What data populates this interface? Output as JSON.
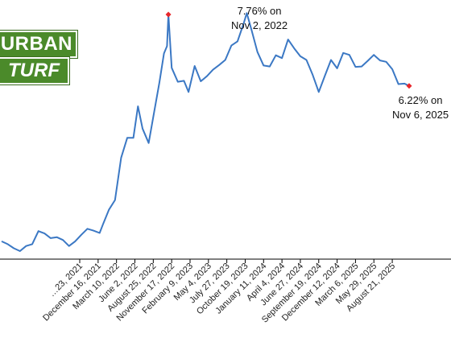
{
  "logo": {
    "line1": "URBAN",
    "line2": "TURF"
  },
  "annotations": {
    "peak": {
      "line1": "7.76% on",
      "line2": "Nov 2, 2022"
    },
    "last": {
      "line1": "6.22% on",
      "line2": "Nov 6, 2025"
    }
  },
  "colors": {
    "line": "#3b78c4",
    "marker": "#e8262b",
    "logo": "#4b8a2a"
  },
  "chart_data": {
    "type": "line",
    "title": "",
    "xlabel": "",
    "ylabel": "",
    "ylim": [
      2.5,
      8.0
    ],
    "grid": false,
    "series": [
      {
        "name": "",
        "points": [
          [
            "2020-10-01",
            2.87
          ],
          [
            "2020-10-29",
            2.81
          ],
          [
            "2020-11-26",
            2.72
          ],
          [
            "2020-12-24",
            2.66
          ],
          [
            "2021-01-21",
            2.77
          ],
          [
            "2021-02-18",
            2.81
          ],
          [
            "2021-03-18",
            3.09
          ],
          [
            "2021-04-15",
            3.04
          ],
          [
            "2021-05-13",
            2.94
          ],
          [
            "2021-06-10",
            2.96
          ],
          [
            "2021-07-08",
            2.9
          ],
          [
            "2021-08-05",
            2.77
          ],
          [
            "2021-09-02",
            2.87
          ],
          [
            "2021-09-30",
            3.01
          ],
          [
            "2021-10-28",
            3.14
          ],
          [
            "2021-11-25",
            3.1
          ],
          [
            "2021-12-23",
            3.05
          ],
          [
            "2022-01-06",
            3.22
          ],
          [
            "2022-02-03",
            3.55
          ],
          [
            "2022-03-03",
            3.76
          ],
          [
            "2022-03-31",
            4.67
          ],
          [
            "2022-04-28",
            5.1
          ],
          [
            "2022-05-26",
            5.1
          ],
          [
            "2022-06-16",
            5.78
          ],
          [
            "2022-07-07",
            5.3
          ],
          [
            "2022-08-04",
            4.99
          ],
          [
            "2022-08-25",
            5.55
          ],
          [
            "2022-09-22",
            6.29
          ],
          [
            "2022-10-13",
            6.92
          ],
          [
            "2022-10-27",
            7.08
          ],
          [
            "2022-11-02",
            7.76
          ],
          [
            "2022-11-17",
            6.61
          ],
          [
            "2022-12-15",
            6.31
          ],
          [
            "2023-01-12",
            6.33
          ],
          [
            "2023-02-02",
            6.09
          ],
          [
            "2023-03-02",
            6.65
          ],
          [
            "2023-03-30",
            6.32
          ],
          [
            "2023-04-27",
            6.43
          ],
          [
            "2023-05-25",
            6.57
          ],
          [
            "2023-06-22",
            6.67
          ],
          [
            "2023-07-20",
            6.78
          ],
          [
            "2023-08-17",
            7.09
          ],
          [
            "2023-09-14",
            7.18
          ],
          [
            "2023-10-12",
            7.57
          ],
          [
            "2023-10-26",
            7.79
          ],
          [
            "2023-11-16",
            7.44
          ],
          [
            "2023-12-14",
            6.95
          ],
          [
            "2024-01-11",
            6.66
          ],
          [
            "2024-02-08",
            6.64
          ],
          [
            "2024-03-07",
            6.88
          ],
          [
            "2024-04-04",
            6.82
          ],
          [
            "2024-05-02",
            7.22
          ],
          [
            "2024-05-30",
            7.03
          ],
          [
            "2024-06-27",
            6.86
          ],
          [
            "2024-07-25",
            6.78
          ],
          [
            "2024-08-22",
            6.46
          ],
          [
            "2024-09-19",
            6.09
          ],
          [
            "2024-10-17",
            6.44
          ],
          [
            "2024-11-14",
            6.78
          ],
          [
            "2024-12-12",
            6.6
          ],
          [
            "2025-01-09",
            6.93
          ],
          [
            "2025-02-06",
            6.89
          ],
          [
            "2025-03-06",
            6.63
          ],
          [
            "2025-04-03",
            6.64
          ],
          [
            "2025-05-01",
            6.76
          ],
          [
            "2025-05-29",
            6.89
          ],
          [
            "2025-06-26",
            6.77
          ],
          [
            "2025-07-24",
            6.74
          ],
          [
            "2025-08-21",
            6.58
          ],
          [
            "2025-09-18",
            6.26
          ],
          [
            "2025-10-16",
            6.27
          ],
          [
            "2025-11-06",
            6.22
          ]
        ]
      }
    ],
    "markers": [
      {
        "date": "2022-11-02",
        "value": 7.76
      },
      {
        "date": "2025-11-06",
        "value": 6.22
      }
    ],
    "x_ticks": [
      {
        "date": "2021-09-23",
        "label": "…23, 2021"
      },
      {
        "date": "2021-12-16",
        "label": "December 16, 2021"
      },
      {
        "date": "2022-03-10",
        "label": "March 10, 2022"
      },
      {
        "date": "2022-06-02",
        "label": "June 2, 2022"
      },
      {
        "date": "2022-08-25",
        "label": "August 25, 2022"
      },
      {
        "date": "2022-11-17",
        "label": "November 17, 2022"
      },
      {
        "date": "2023-02-09",
        "label": "February 9, 2023"
      },
      {
        "date": "2023-05-04",
        "label": "May 4, 2023"
      },
      {
        "date": "2023-07-27",
        "label": "July 27, 2023"
      },
      {
        "date": "2023-10-19",
        "label": "October 19, 2023"
      },
      {
        "date": "2024-01-11",
        "label": "January 11, 2024"
      },
      {
        "date": "2024-04-04",
        "label": "April 4, 2024"
      },
      {
        "date": "2024-06-27",
        "label": "June 27, 2024"
      },
      {
        "date": "2024-09-19",
        "label": "September 19, 2024"
      },
      {
        "date": "2024-12-12",
        "label": "December 12, 2024"
      },
      {
        "date": "2025-03-06",
        "label": "March 6, 2025"
      },
      {
        "date": "2025-05-29",
        "label": "May 29, 2025"
      },
      {
        "date": "2025-08-21",
        "label": "August 21, 2025"
      }
    ]
  }
}
